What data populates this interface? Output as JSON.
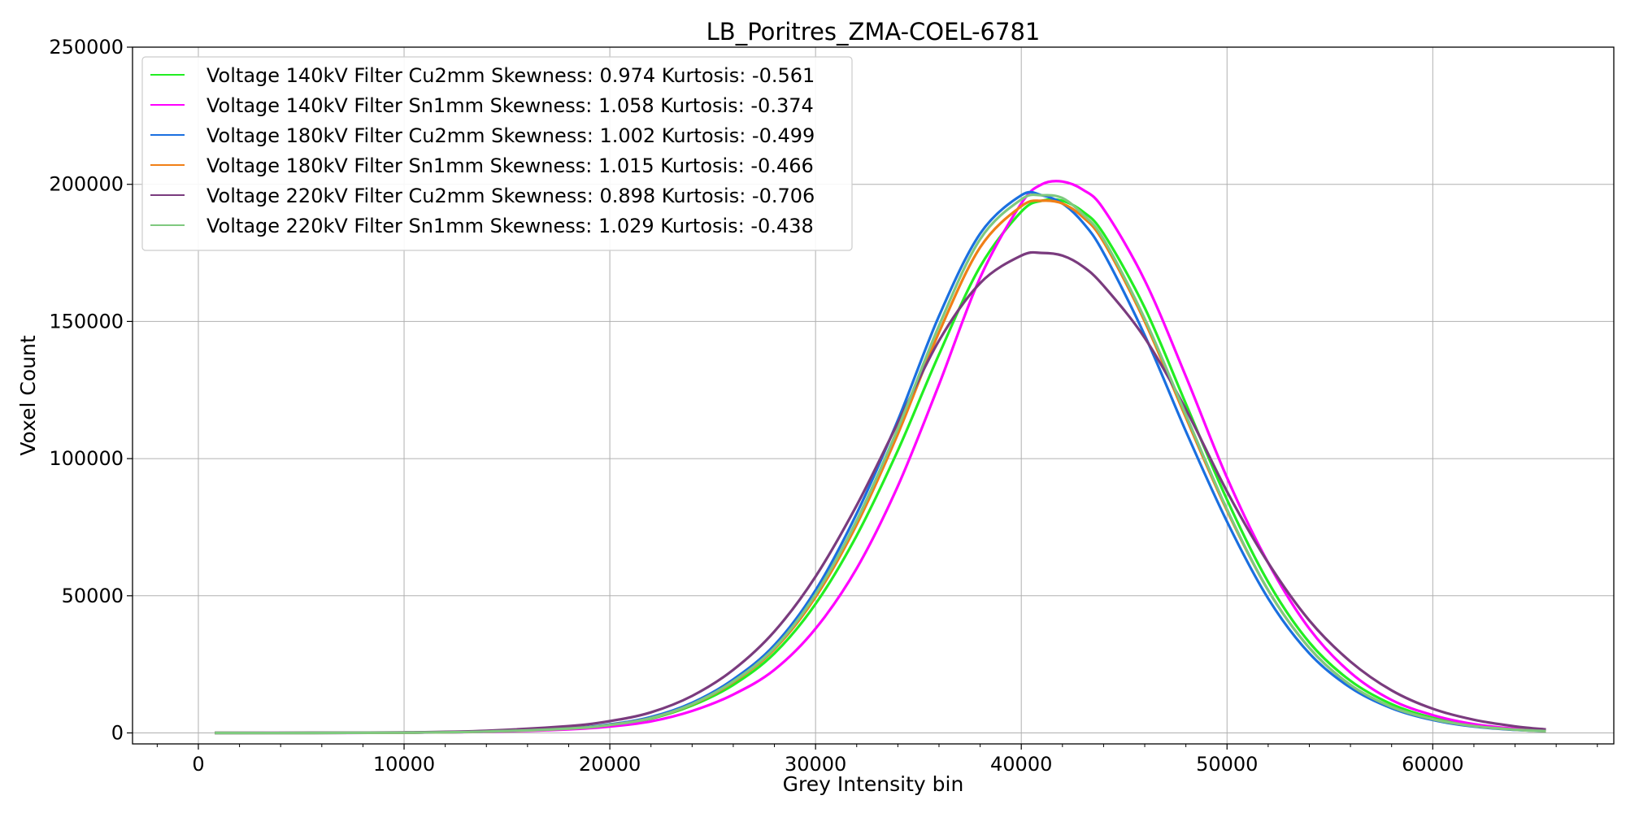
{
  "chart_data": {
    "type": "line",
    "title": "LB_Poritres_ZMA-COEL-6781",
    "xlabel": "Grey Intensity bin",
    "ylabel": "Voxel Count",
    "xlim": [
      -3200,
      68800
    ],
    "ylim": [
      -4000,
      250000
    ],
    "xticks": [
      0,
      10000,
      20000,
      30000,
      40000,
      50000,
      60000
    ],
    "yticks": [
      0,
      50000,
      100000,
      150000,
      200000,
      250000
    ],
    "grid": true,
    "legend_position": "top-left",
    "series": [
      {
        "name": "Voltage 140kV Filter Cu2mm Skewness: 0.974 Kurtosis: -0.561",
        "color": "#22ee22",
        "x": [
          800,
          5000,
          10000,
          14000,
          18000,
          20000,
          22000,
          24000,
          26000,
          28000,
          30000,
          32000,
          34000,
          36000,
          38000,
          40000,
          41000,
          42000,
          43000,
          44000,
          46000,
          48000,
          50000,
          52000,
          54000,
          56000,
          58000,
          60000,
          62000,
          64000,
          65500
        ],
        "values": [
          0,
          0,
          100,
          500,
          1600,
          2800,
          5200,
          10000,
          17500,
          29000,
          47000,
          72000,
          103000,
          138000,
          170000,
          190000,
          194000,
          194000,
          190000,
          182000,
          155000,
          120000,
          85000,
          55000,
          33000,
          19000,
          10500,
          5500,
          2800,
          1300,
          700
        ]
      },
      {
        "name": "Voltage 140kV Filter Sn1mm Skewness: 1.058 Kurtosis: -0.374",
        "color": "#ff00ff",
        "x": [
          800,
          5000,
          10000,
          14000,
          18000,
          20000,
          22000,
          24000,
          26000,
          28000,
          30000,
          32000,
          34000,
          36000,
          38000,
          40000,
          41000,
          42000,
          43000,
          44000,
          46000,
          48000,
          50000,
          52000,
          54000,
          56000,
          58000,
          60000,
          62000,
          64000,
          65500
        ],
        "values": [
          0,
          0,
          80,
          400,
          1300,
          2300,
          4200,
          8000,
          14000,
          23000,
          38000,
          60000,
          90000,
          127000,
          166000,
          193000,
          200000,
          201000,
          198000,
          191000,
          165000,
          130000,
          93000,
          62000,
          38000,
          22000,
          12000,
          6500,
          3200,
          1500,
          800
        ]
      },
      {
        "name": "Voltage 180kV Filter Cu2mm Skewness: 1.002 Kurtosis: -0.499",
        "color": "#1a6fe0",
        "x": [
          800,
          5000,
          10000,
          14000,
          18000,
          20000,
          22000,
          24000,
          26000,
          28000,
          30000,
          32000,
          34000,
          36000,
          38000,
          40000,
          41000,
          42000,
          43000,
          44000,
          46000,
          48000,
          50000,
          52000,
          54000,
          56000,
          58000,
          60000,
          62000,
          64000,
          65500
        ],
        "values": [
          0,
          0,
          100,
          500,
          1700,
          3100,
          5800,
          11000,
          19500,
          32000,
          52000,
          80000,
          114000,
          152000,
          182000,
          196000,
          196000,
          193000,
          186000,
          175000,
          145000,
          110000,
          77000,
          49000,
          29000,
          16500,
          9000,
          4700,
          2300,
          1100,
          600
        ]
      },
      {
        "name": "Voltage 180kV Filter Sn1mm Skewness: 1.015 Kurtosis: -0.466",
        "color": "#f07f16",
        "x": [
          800,
          5000,
          10000,
          14000,
          18000,
          20000,
          22000,
          24000,
          26000,
          28000,
          30000,
          32000,
          34000,
          36000,
          38000,
          40000,
          41000,
          42000,
          43000,
          44000,
          46000,
          48000,
          50000,
          52000,
          54000,
          56000,
          58000,
          60000,
          62000,
          64000,
          65500
        ],
        "values": [
          0,
          0,
          100,
          500,
          1600,
          2900,
          5400,
          10400,
          18500,
          30500,
          49500,
          76000,
          109000,
          146000,
          177000,
          192000,
          194000,
          193000,
          188000,
          179000,
          150000,
          115000,
          81000,
          52000,
          31000,
          17500,
          9500,
          5000,
          2500,
          1200,
          650
        ]
      },
      {
        "name": "Voltage 220kV Filter Cu2mm Skewness: 0.898 Kurtosis: -0.706",
        "color": "#7a3b7e",
        "x": [
          800,
          5000,
          10000,
          14000,
          18000,
          20000,
          22000,
          24000,
          26000,
          28000,
          30000,
          32000,
          34000,
          36000,
          38000,
          40000,
          41000,
          42000,
          43000,
          44000,
          46000,
          48000,
          50000,
          52000,
          54000,
          56000,
          58000,
          60000,
          62000,
          64000,
          65500
        ],
        "values": [
          0,
          50,
          200,
          800,
          2500,
          4300,
          7500,
          13500,
          23000,
          37000,
          57000,
          83000,
          113000,
          143000,
          164000,
          174000,
          175000,
          174000,
          170000,
          163000,
          144000,
          118000,
          88000,
          62000,
          41000,
          26000,
          15500,
          8800,
          4800,
          2400,
          1300
        ]
      },
      {
        "name": "Voltage 220kV Filter Sn1mm Skewness: 1.029 Kurtosis: -0.438",
        "color": "#7fc97f",
        "x": [
          800,
          5000,
          10000,
          14000,
          18000,
          20000,
          22000,
          24000,
          26000,
          28000,
          30000,
          32000,
          34000,
          36000,
          38000,
          40000,
          41000,
          42000,
          43000,
          44000,
          46000,
          48000,
          50000,
          52000,
          54000,
          56000,
          58000,
          60000,
          62000,
          64000,
          65500
        ],
        "values": [
          0,
          0,
          100,
          500,
          1600,
          2900,
          5400,
          10500,
          18800,
          31000,
          50500,
          77500,
          111000,
          148500,
          180000,
          194500,
          196000,
          195000,
          189000,
          180000,
          151000,
          116000,
          81500,
          52000,
          31000,
          17500,
          9500,
          5000,
          2500,
          1200,
          650
        ]
      }
    ]
  }
}
